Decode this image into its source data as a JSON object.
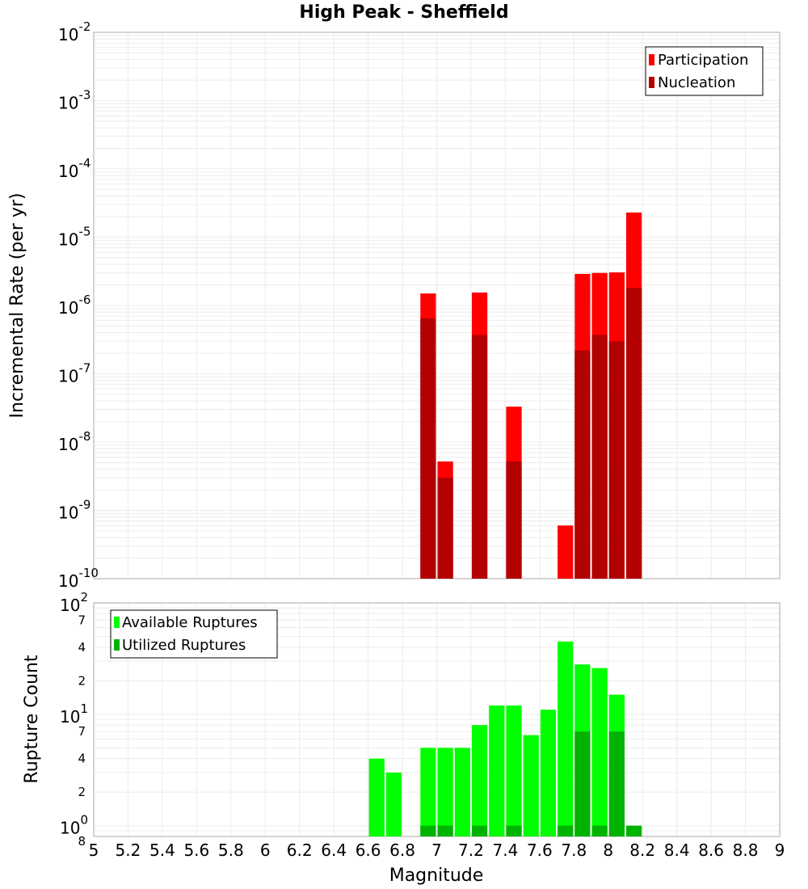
{
  "chart_data": [
    {
      "type": "bar",
      "title": "High Peak - Sheffield",
      "xlabel": "Magnitude",
      "ylabel": "Incremental Rate (per yr)",
      "yscale": "log",
      "ylim": [
        1e-10,
        0.01
      ],
      "xlim": [
        5,
        9
      ],
      "grid": true,
      "legend_position": "top-right",
      "x_ticks": [
        "5",
        "5.2",
        "5.4",
        "5.6",
        "5.8",
        "6",
        "6.2",
        "6.4",
        "6.6",
        "6.8",
        "7",
        "7.2",
        "7.4",
        "7.6",
        "7.8",
        "8",
        "8.2",
        "8.4",
        "8.6",
        "8.8",
        "9"
      ],
      "y_tick_exponents": [
        "-2",
        "-3",
        "-4",
        "-5",
        "-6",
        "-7",
        "-8",
        "-9",
        "-10"
      ],
      "y_tick_base": "10",
      "x": [
        6.95,
        7.05,
        7.25,
        7.45,
        7.75,
        7.85,
        7.95,
        8.05,
        8.15
      ],
      "series": [
        {
          "name": "Participation",
          "color": "#ff0000",
          "values": [
            1.5e-06,
            5.2e-09,
            1.55e-06,
            3.3e-08,
            6e-10,
            2.9e-06,
            3e-06,
            3.05e-06,
            2.3e-05
          ]
        },
        {
          "name": "Nucleation",
          "color": "#b30000",
          "values": [
            6.5e-07,
            3e-09,
            3.7e-07,
            5.2e-09,
            null,
            2.2e-07,
            3.7e-07,
            3e-07,
            1.8e-06
          ]
        }
      ]
    },
    {
      "type": "bar",
      "xlabel": "Magnitude",
      "ylabel": "Rupture Count",
      "yscale": "log",
      "ylim": [
        0.8,
        100
      ],
      "xlim": [
        5,
        9
      ],
      "grid": true,
      "legend_position": "top-left",
      "x": [
        6.65,
        6.75,
        6.95,
        7.05,
        7.15,
        7.25,
        7.35,
        7.45,
        7.55,
        7.65,
        7.75,
        7.85,
        7.95,
        8.05,
        8.15
      ],
      "series": [
        {
          "name": "Available Ruptures",
          "color": "#00ff00",
          "values": [
            4,
            3,
            5,
            5,
            5,
            8,
            12,
            12,
            6.5,
            11,
            45,
            28,
            26,
            15,
            null
          ]
        },
        {
          "name": "Utilized Ruptures",
          "color": "#00b300",
          "values": [
            null,
            null,
            1,
            1,
            null,
            1,
            null,
            1,
            null,
            null,
            1,
            7,
            1,
            7,
            1
          ]
        }
      ],
      "y_major_labels": [
        "10",
        "10"
      ],
      "y_major_exponents": [
        "2",
        "1",
        "0"
      ],
      "y_minor_labels": [
        "7",
        "4",
        "2",
        "7",
        "4",
        "2",
        "8"
      ]
    }
  ]
}
